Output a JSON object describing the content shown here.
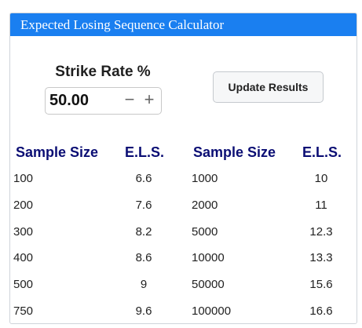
{
  "header": {
    "title": "Expected Losing Sequence Calculator"
  },
  "strike": {
    "label": "Strike Rate %",
    "value": "50.00",
    "minus": "−",
    "plus": "+"
  },
  "update_button": {
    "label": "Update Results"
  },
  "table": {
    "headers": [
      "Sample Size",
      "E.L.S.",
      "Sample Size",
      "E.L.S."
    ],
    "left_rows": [
      [
        "100",
        "6.6"
      ],
      [
        "200",
        "7.6"
      ],
      [
        "300",
        "8.2"
      ],
      [
        "400",
        "8.6"
      ],
      [
        "500",
        "9"
      ],
      [
        "750",
        "9.6"
      ]
    ],
    "right_rows": [
      [
        "1000",
        "10"
      ],
      [
        "2000",
        "11"
      ],
      [
        "5000",
        "12.3"
      ],
      [
        "10000",
        "13.3"
      ],
      [
        "50000",
        "15.6"
      ],
      [
        "100000",
        "16.6"
      ]
    ]
  }
}
